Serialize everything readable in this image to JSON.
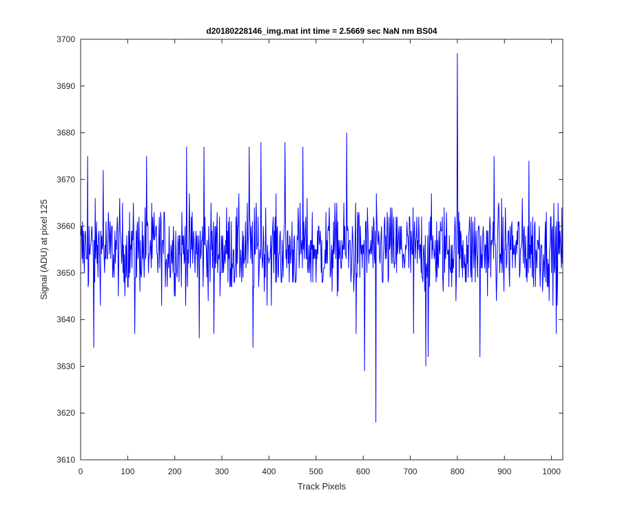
{
  "chart_data": {
    "type": "line",
    "title": "d20180228146_img.mat int time = 2.5669 sec  NaN nm BS04",
    "xlabel": "Track Pixels",
    "ylabel": "Signal (ADU) at pixel 125",
    "xlim": [
      0,
      1024
    ],
    "ylim": [
      3610,
      3700
    ],
    "xticks": [
      0,
      100,
      200,
      300,
      400,
      500,
      600,
      700,
      800,
      900,
      1000
    ],
    "yticks": [
      3610,
      3620,
      3630,
      3640,
      3650,
      3660,
      3670,
      3680,
      3690,
      3700
    ],
    "grid": false,
    "line_color": "#0000ff",
    "series": [
      {
        "base": 3655,
        "noise_amplitude": 8,
        "n_points": 1024,
        "extremes": [
          {
            "x": 15,
            "y": 3675
          },
          {
            "x": 28,
            "y": 3634
          },
          {
            "x": 48,
            "y": 3672
          },
          {
            "x": 115,
            "y": 3637
          },
          {
            "x": 140,
            "y": 3675
          },
          {
            "x": 225,
            "y": 3677
          },
          {
            "x": 252,
            "y": 3636
          },
          {
            "x": 262,
            "y": 3677
          },
          {
            "x": 283,
            "y": 3637
          },
          {
            "x": 358,
            "y": 3677
          },
          {
            "x": 366,
            "y": 3634
          },
          {
            "x": 383,
            "y": 3678
          },
          {
            "x": 434,
            "y": 3678
          },
          {
            "x": 472,
            "y": 3677
          },
          {
            "x": 565,
            "y": 3680
          },
          {
            "x": 585,
            "y": 3637
          },
          {
            "x": 603,
            "y": 3629
          },
          {
            "x": 627,
            "y": 3618
          },
          {
            "x": 707,
            "y": 3637
          },
          {
            "x": 733,
            "y": 3630
          },
          {
            "x": 738,
            "y": 3632
          },
          {
            "x": 800,
            "y": 3697
          },
          {
            "x": 848,
            "y": 3632
          },
          {
            "x": 878,
            "y": 3675
          },
          {
            "x": 952,
            "y": 3674
          },
          {
            "x": 1010,
            "y": 3637
          }
        ]
      }
    ]
  }
}
